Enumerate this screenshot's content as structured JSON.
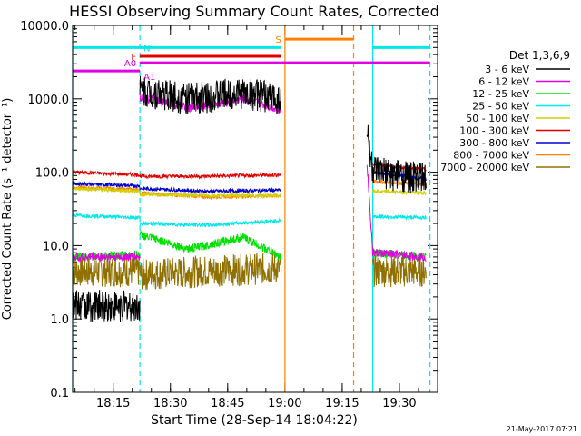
{
  "chart_data": {
    "type": "line",
    "title": "HESSI Observing Summary Count Rates, Corrected",
    "xlabel": "Start Time (28-Sep-14 18:04:22)",
    "ylabel": "Corrected Count Rate (s⁻¹ detector⁻¹)",
    "yscale": "log",
    "ylim": [
      0.1,
      10000
    ],
    "xlim": [
      "18:04:22",
      "19:40:00"
    ],
    "x_ticks": [
      "18:15",
      "18:30",
      "18:45",
      "19:00",
      "19:15",
      "19:30"
    ],
    "y_ticks": [
      "0.1",
      "1.0",
      "10.0",
      "100.0",
      "1000.0",
      "10000.0"
    ],
    "legend_title": "Det 1,3,6,9",
    "legend_position": "right",
    "grid": false,
    "footer_date": "21-May-2017 07:21",
    "series": [
      {
        "name": "3 - 6 keV",
        "color": "#000000",
        "segments": [
          [
            [
              "18:04:22",
              1.5
            ],
            [
              "18:22:00",
              1.5
            ]
          ],
          [
            [
              "18:22:00",
              1280
            ],
            [
              "18:35:00",
              1000
            ],
            [
              "18:49:00",
              1200
            ],
            [
              "18:59:00",
              1000
            ]
          ],
          [
            [
              "19:21:30",
              380
            ],
            [
              "19:23:00",
              100
            ],
            [
              "19:37:00",
              80
            ]
          ]
        ]
      },
      {
        "name": "6 - 12 keV",
        "color": "#e000e0",
        "segments": [
          [
            [
              "18:04:22",
              7
            ],
            [
              "18:22:00",
              7
            ]
          ],
          [
            [
              "18:22:00",
              1050
            ],
            [
              "18:35:00",
              750
            ],
            [
              "18:49:00",
              1000
            ],
            [
              "18:59:00",
              700
            ]
          ],
          [
            [
              "19:21:30",
              140
            ],
            [
              "19:23:00",
              8
            ],
            [
              "19:37:00",
              7
            ]
          ]
        ]
      },
      {
        "name": "12 - 25 keV",
        "color": "#00e000",
        "segments": [
          [
            [
              "18:04:22",
              7
            ],
            [
              "18:22:00",
              7.5
            ]
          ],
          [
            [
              "18:22:00",
              14
            ],
            [
              "18:35:00",
              9
            ],
            [
              "18:49:00",
              13
            ],
            [
              "18:59:00",
              7
            ]
          ],
          [
            [
              "19:23:00",
              8
            ],
            [
              "19:37:00",
              7
            ]
          ]
        ]
      },
      {
        "name": "25 - 50 keV",
        "color": "#00e8e8",
        "segments": [
          [
            [
              "18:04:22",
              26
            ],
            [
              "18:22:00",
              24
            ]
          ],
          [
            [
              "18:22:00",
              20
            ],
            [
              "18:40:00",
              19
            ],
            [
              "18:59:00",
              22
            ]
          ],
          [
            [
              "19:23:00",
              25
            ],
            [
              "19:37:00",
              24
            ]
          ]
        ]
      },
      {
        "name": "50 - 100 keV",
        "color": "#d0d000",
        "segments": [
          [
            [
              "18:04:22",
              60
            ],
            [
              "18:22:00",
              55
            ]
          ],
          [
            [
              "18:22:00",
              50
            ],
            [
              "18:40:00",
              48
            ],
            [
              "18:59:00",
              48
            ]
          ],
          [
            [
              "19:23:00",
              55
            ],
            [
              "19:37:00",
              52
            ]
          ]
        ]
      },
      {
        "name": "100 - 300 keV",
        "color": "#e00000",
        "segments": [
          [
            [
              "18:04:22",
              100
            ],
            [
              "18:22:00",
              92
            ]
          ],
          [
            [
              "18:22:00",
              88
            ],
            [
              "18:40:00",
              88
            ],
            [
              "18:59:00",
              92
            ]
          ],
          [
            [
              "19:23:00",
              128
            ],
            [
              "19:37:00",
              108
            ]
          ]
        ]
      },
      {
        "name": "300 - 800 keV",
        "color": "#0000d0",
        "segments": [
          [
            [
              "18:04:22",
              70
            ],
            [
              "18:22:00",
              65
            ]
          ],
          [
            [
              "18:22:00",
              60
            ],
            [
              "18:40:00",
              55
            ],
            [
              "18:59:00",
              57
            ]
          ],
          [
            [
              "19:23:00",
              100
            ],
            [
              "19:37:00",
              80
            ]
          ]
        ]
      },
      {
        "name": "800 - 7000 keV",
        "color": "#ff8000",
        "segments": [
          [
            [
              "18:04:22",
              62
            ],
            [
              "18:22:00",
              58
            ]
          ],
          [
            [
              "18:22:00",
              52
            ],
            [
              "18:40:00",
              46
            ],
            [
              "18:59:00",
              48
            ]
          ],
          [
            [
              "19:23:00",
              75
            ],
            [
              "19:37:00",
              68
            ]
          ]
        ]
      },
      {
        "name": "7000 - 20000 keV",
        "color": "#907000",
        "segments": [
          [
            [
              "18:04:22",
              4.5
            ],
            [
              "18:22:00",
              4.5
            ]
          ],
          [
            [
              "18:22:00",
              4
            ],
            [
              "18:40:00",
              4.5
            ],
            [
              "18:59:00",
              5
            ]
          ],
          [
            [
              "19:23:00",
              4.5
            ],
            [
              "19:37:00",
              4.5
            ]
          ]
        ]
      }
    ],
    "flags": [
      {
        "label": "N",
        "color": "#00e8e8",
        "level": 5000,
        "segments": [
          [
            "18:04:22",
            "18:22:00"
          ],
          [
            "18:22:00",
            "18:59:00"
          ],
          [
            "19:23:00",
            "19:38:00"
          ]
        ]
      },
      {
        "label": "F",
        "color": "#e00000",
        "level": 3800,
        "segments": [
          [
            "18:22:00",
            "18:59:00"
          ]
        ]
      },
      {
        "label": "A0",
        "color": "#e000e0",
        "level": 3100,
        "segments": [
          [
            "18:22:00",
            "19:38:00"
          ]
        ]
      },
      {
        "label": "A1",
        "color": "#e000e0",
        "level": 2400,
        "segments": [
          [
            "18:04:22",
            "18:22:00"
          ]
        ]
      },
      {
        "label": "S",
        "color": "#ff8000",
        "level": 6500,
        "segments": [
          [
            "19:00:00",
            "19:18:00"
          ]
        ]
      }
    ],
    "markers": [
      {
        "time": "18:04:22",
        "color": "#00e8e8",
        "style": "solid"
      },
      {
        "time": "18:22:00",
        "color": "#00e8e8",
        "style": "dashed"
      },
      {
        "time": "19:00:00",
        "color": "#ff8000",
        "style": "solid"
      },
      {
        "time": "19:18:00",
        "color": "#ff8000",
        "style": "dashed"
      },
      {
        "time": "19:23:00",
        "color": "#00e8e8",
        "style": "solid"
      },
      {
        "time": "19:38:00",
        "color": "#00e8e8",
        "style": "dashed"
      }
    ]
  }
}
